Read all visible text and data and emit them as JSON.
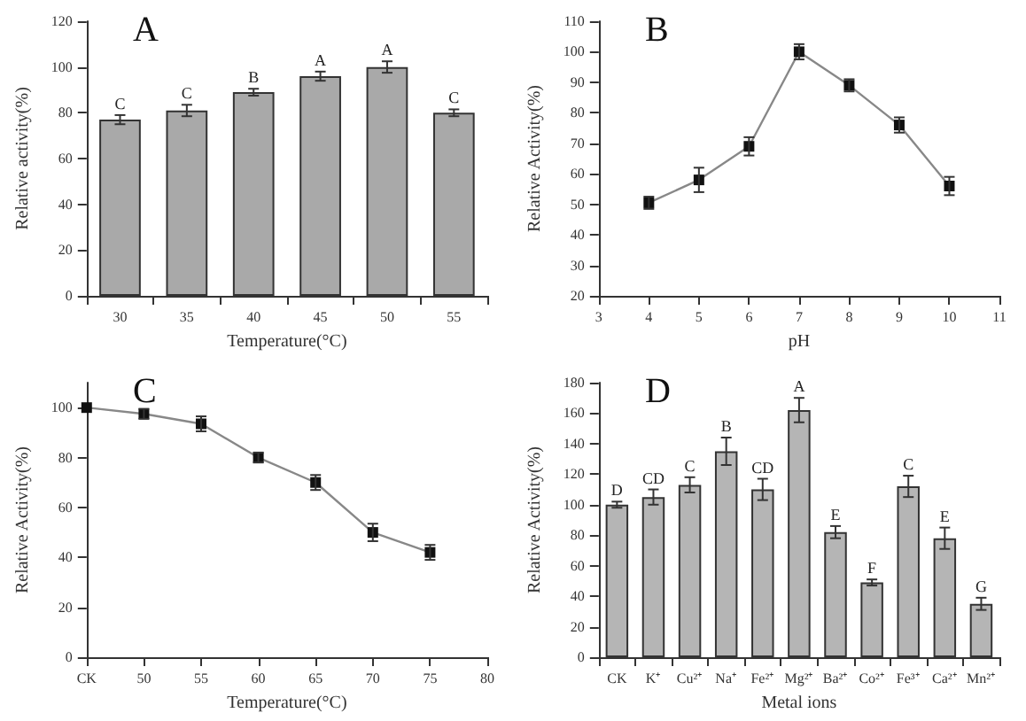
{
  "chart_data": [
    {
      "type": "bar",
      "title": "A",
      "xlabel": "Temperature(°C)",
      "ylabel": "Relative activity(%)",
      "categories": [
        "30",
        "35",
        "40",
        "45",
        "50",
        "55"
      ],
      "values": [
        77,
        81,
        89,
        96,
        100,
        80
      ],
      "errors": [
        2,
        2.5,
        1.5,
        2,
        2.5,
        1.5
      ],
      "value_labels": [
        "C",
        "C",
        "B",
        "A",
        "A",
        "C"
      ],
      "color": "#a9a9a9",
      "ylim": [
        0,
        120
      ],
      "yticks": [
        0,
        20,
        40,
        60,
        80,
        100,
        120
      ]
    },
    {
      "type": "line",
      "title": "B",
      "xlabel": "pH",
      "ylabel": "Relative Activity(%)",
      "x": [
        4,
        5,
        6,
        7,
        8,
        9,
        10
      ],
      "values": [
        50.5,
        58,
        69,
        100,
        89,
        76,
        56
      ],
      "errors": [
        2,
        4,
        3,
        2.5,
        2,
        2.5,
        3
      ],
      "color": "#888888",
      "marker": "square",
      "line_style": "solid",
      "xlim": [
        3,
        11
      ],
      "xticks": [
        3,
        4,
        5,
        6,
        7,
        8,
        9,
        10,
        11
      ],
      "ylim": [
        20,
        110
      ],
      "yticks": [
        20,
        30,
        40,
        50,
        60,
        70,
        80,
        90,
        100,
        110
      ]
    },
    {
      "type": "line",
      "title": "C",
      "xlabel": "Temperature(°C)",
      "ylabel": "Relative Activity(%)",
      "x": [
        45,
        50,
        55,
        60,
        65,
        70,
        75
      ],
      "values": [
        100,
        97.5,
        93.5,
        80,
        70,
        50,
        42
      ],
      "errors": [
        null,
        2,
        3,
        2,
        3,
        3.5,
        3
      ],
      "color": "#888888",
      "marker": "square",
      "line_style": "solid",
      "xlim": [
        45,
        80
      ],
      "xticks": [
        {
          "value": 45,
          "label": "CK"
        },
        50,
        55,
        60,
        65,
        70,
        75,
        80
      ],
      "ylim": [
        0,
        110
      ],
      "yticks": [
        0,
        20,
        40,
        60,
        80,
        100
      ]
    },
    {
      "type": "bar",
      "title": "D",
      "xlabel": "Metal ions",
      "ylabel": "Relative Activity(%)",
      "categories": [
        "CK",
        "K⁺",
        "Cu²⁺",
        "Na⁺",
        "Fe²⁺",
        "Mg²⁺",
        "Ba²⁺",
        "Co²⁺",
        "Fe³⁺",
        "Ca²⁺",
        "Mn²⁺"
      ],
      "values": [
        100,
        105,
        113,
        135,
        110,
        162,
        82,
        49,
        112,
        78,
        35
      ],
      "errors": [
        2,
        5,
        5,
        9,
        7,
        8,
        4,
        2,
        7,
        7,
        4
      ],
      "value_labels": [
        "D",
        "CD",
        "C",
        "B",
        "CD",
        "A",
        "E",
        "F",
        "C",
        "E",
        "G"
      ],
      "color": "#b5b5b5",
      "ylim": [
        0,
        180
      ],
      "yticks": [
        0,
        20,
        40,
        60,
        80,
        100,
        120,
        140,
        160,
        180
      ]
    }
  ]
}
